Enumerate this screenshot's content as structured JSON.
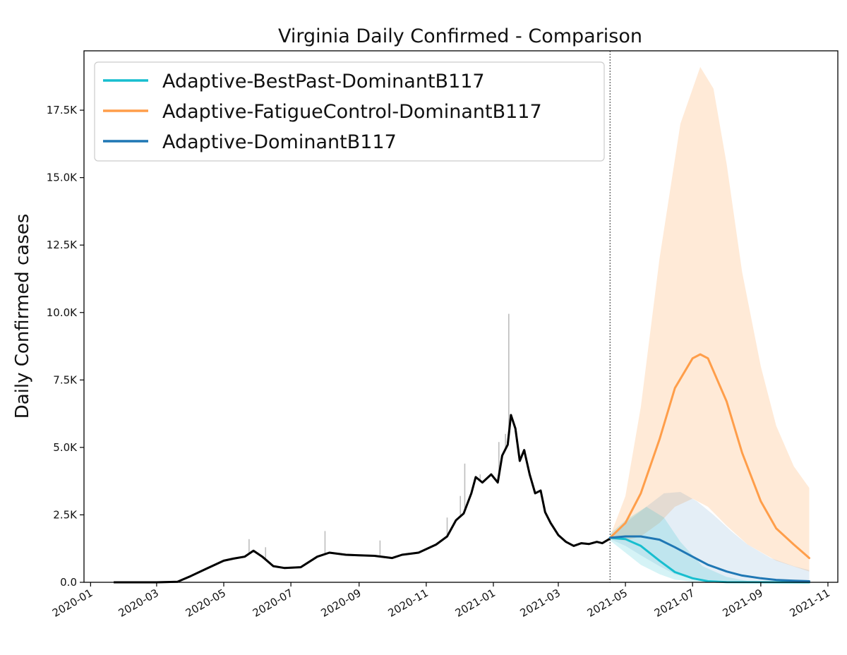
{
  "chart_data": {
    "type": "line",
    "title": "Virginia Daily Confirmed - Comparison",
    "xlabel": "",
    "ylabel": "Daily Confirmed cases",
    "x_ticks": [
      "2020-01",
      "2020-03",
      "2020-05",
      "2020-07",
      "2020-09",
      "2020-11",
      "2021-01",
      "2021-03",
      "2021-05",
      "2021-07",
      "2021-09",
      "2021-11"
    ],
    "y_ticks": [
      {
        "value": 0,
        "label": "0.0"
      },
      {
        "value": 2500,
        "label": "2.5K"
      },
      {
        "value": 5000,
        "label": "5.0K"
      },
      {
        "value": 7500,
        "label": "7.5K"
      },
      {
        "value": 10000,
        "label": "10.0K"
      },
      {
        "value": 12500,
        "label": "12.5K"
      },
      {
        "value": 15000,
        "label": "15.0K"
      },
      {
        "value": 17500,
        "label": "17.5K"
      }
    ],
    "xlim": [
      "2019-12-26",
      "2021-11-10"
    ],
    "ylim": [
      0,
      19700
    ],
    "forecast_start": "2021-04-17",
    "legend_position": "upper-left",
    "observed_smoothed": {
      "color": "#000000",
      "points": [
        [
          "2020-01-22",
          0
        ],
        [
          "2020-03-01",
          0
        ],
        [
          "2020-03-20",
          20
        ],
        [
          "2020-04-01",
          230
        ],
        [
          "2020-04-15",
          500
        ],
        [
          "2020-05-01",
          800
        ],
        [
          "2020-05-10",
          880
        ],
        [
          "2020-05-20",
          950
        ],
        [
          "2020-05-28",
          1170
        ],
        [
          "2020-06-05",
          950
        ],
        [
          "2020-06-15",
          600
        ],
        [
          "2020-06-25",
          530
        ],
        [
          "2020-07-10",
          560
        ],
        [
          "2020-07-25",
          950
        ],
        [
          "2020-08-05",
          1100
        ],
        [
          "2020-08-20",
          1020
        ],
        [
          "2020-09-01",
          1000
        ],
        [
          "2020-09-15",
          980
        ],
        [
          "2020-10-01",
          900
        ],
        [
          "2020-10-10",
          1020
        ],
        [
          "2020-10-25",
          1100
        ],
        [
          "2020-11-10",
          1400
        ],
        [
          "2020-11-20",
          1700
        ],
        [
          "2020-11-28",
          2300
        ],
        [
          "2020-12-05",
          2550
        ],
        [
          "2020-12-12",
          3300
        ],
        [
          "2020-12-16",
          3900
        ],
        [
          "2020-12-22",
          3700
        ],
        [
          "2020-12-30",
          4000
        ],
        [
          "2021-01-05",
          3700
        ],
        [
          "2021-01-09",
          4700
        ],
        [
          "2021-01-14",
          5100
        ],
        [
          "2021-01-17",
          6200
        ],
        [
          "2021-01-21",
          5700
        ],
        [
          "2021-01-25",
          4500
        ],
        [
          "2021-01-29",
          4900
        ],
        [
          "2021-02-03",
          4000
        ],
        [
          "2021-02-08",
          3300
        ],
        [
          "2021-02-13",
          3400
        ],
        [
          "2021-02-17",
          2600
        ],
        [
          "2021-02-22",
          2200
        ],
        [
          "2021-03-01",
          1750
        ],
        [
          "2021-03-08",
          1500
        ],
        [
          "2021-03-15",
          1350
        ],
        [
          "2021-03-22",
          1450
        ],
        [
          "2021-03-29",
          1420
        ],
        [
          "2021-04-05",
          1500
        ],
        [
          "2021-04-10",
          1450
        ],
        [
          "2021-04-17",
          1620
        ]
      ]
    },
    "observed_raw": {
      "color": "#bdbdbd",
      "spikes": [
        [
          "2020-05-24",
          1600
        ],
        [
          "2020-06-08",
          1300
        ],
        [
          "2020-08-01",
          1900
        ],
        [
          "2020-09-20",
          1550
        ],
        [
          "2020-11-20",
          2400
        ],
        [
          "2020-12-02",
          3200
        ],
        [
          "2020-12-06",
          4400
        ],
        [
          "2020-12-20",
          4000
        ],
        [
          "2021-01-06",
          5200
        ],
        [
          "2021-01-12",
          5500
        ],
        [
          "2021-01-15",
          9950
        ],
        [
          "2021-01-22",
          5200
        ],
        [
          "2021-01-30",
          4900
        ]
      ]
    },
    "series": [
      {
        "name": "Adaptive-BestPast-DominantB117",
        "color": "#17becf",
        "points": [
          [
            "2021-04-17",
            1650
          ],
          [
            "2021-05-01",
            1600
          ],
          [
            "2021-05-15",
            1350
          ],
          [
            "2021-06-01",
            800
          ],
          [
            "2021-06-15",
            380
          ],
          [
            "2021-07-01",
            150
          ],
          [
            "2021-07-15",
            40
          ],
          [
            "2021-08-01",
            5
          ],
          [
            "2021-10-15",
            0
          ]
        ],
        "band_upper": [
          [
            "2021-04-17",
            1800
          ],
          [
            "2021-05-01",
            2300
          ],
          [
            "2021-05-20",
            2800
          ],
          [
            "2021-06-05",
            2400
          ],
          [
            "2021-06-20",
            1500
          ],
          [
            "2021-07-10",
            600
          ],
          [
            "2021-08-01",
            200
          ],
          [
            "2021-08-20",
            50
          ],
          [
            "2021-10-15",
            0
          ]
        ],
        "band_lower": [
          [
            "2021-04-17",
            1550
          ],
          [
            "2021-05-01",
            1100
          ],
          [
            "2021-05-15",
            650
          ],
          [
            "2021-06-01",
            300
          ],
          [
            "2021-06-15",
            100
          ],
          [
            "2021-07-01",
            20
          ],
          [
            "2021-10-15",
            0
          ]
        ]
      },
      {
        "name": "Adaptive-FatigueControl-DominantB117",
        "color": "#ff9e4a",
        "points": [
          [
            "2021-04-17",
            1650
          ],
          [
            "2021-05-01",
            2200
          ],
          [
            "2021-05-15",
            3300
          ],
          [
            "2021-06-01",
            5300
          ],
          [
            "2021-06-15",
            7200
          ],
          [
            "2021-07-01",
            8300
          ],
          [
            "2021-07-08",
            8450
          ],
          [
            "2021-07-15",
            8300
          ],
          [
            "2021-08-01",
            6700
          ],
          [
            "2021-08-15",
            4800
          ],
          [
            "2021-09-01",
            3000
          ],
          [
            "2021-09-15",
            2000
          ],
          [
            "2021-10-01",
            1400
          ],
          [
            "2021-10-15",
            900
          ]
        ],
        "band_upper": [
          [
            "2021-04-17",
            1700
          ],
          [
            "2021-05-01",
            3200
          ],
          [
            "2021-05-15",
            6500
          ],
          [
            "2021-06-01",
            12000
          ],
          [
            "2021-06-20",
            17000
          ],
          [
            "2021-07-08",
            19100
          ],
          [
            "2021-07-20",
            18300
          ],
          [
            "2021-08-01",
            15500
          ],
          [
            "2021-08-15",
            11500
          ],
          [
            "2021-09-01",
            8000
          ],
          [
            "2021-09-15",
            5800
          ],
          [
            "2021-10-01",
            4300
          ],
          [
            "2021-10-15",
            3500
          ]
        ],
        "band_lower": [
          [
            "2021-04-17",
            1600
          ],
          [
            "2021-05-01",
            1550
          ],
          [
            "2021-05-15",
            1700
          ],
          [
            "2021-06-01",
            2200
          ],
          [
            "2021-06-15",
            2800
          ],
          [
            "2021-07-01",
            3100
          ],
          [
            "2021-07-15",
            2800
          ],
          [
            "2021-08-01",
            2100
          ],
          [
            "2021-08-20",
            1400
          ],
          [
            "2021-09-15",
            800
          ],
          [
            "2021-10-15",
            400
          ]
        ]
      },
      {
        "name": "Adaptive-DominantB117",
        "color": "#1f77b4",
        "points": [
          [
            "2021-04-17",
            1650
          ],
          [
            "2021-05-01",
            1700
          ],
          [
            "2021-05-15",
            1700
          ],
          [
            "2021-06-01",
            1580
          ],
          [
            "2021-06-15",
            1300
          ],
          [
            "2021-07-01",
            950
          ],
          [
            "2021-07-15",
            650
          ],
          [
            "2021-08-01",
            400
          ],
          [
            "2021-08-15",
            250
          ],
          [
            "2021-09-01",
            150
          ],
          [
            "2021-09-15",
            90
          ],
          [
            "2021-10-01",
            60
          ],
          [
            "2021-10-15",
            40
          ]
        ],
        "band_upper": [
          [
            "2021-04-17",
            1700
          ],
          [
            "2021-05-01",
            2200
          ],
          [
            "2021-05-20",
            2800
          ],
          [
            "2021-06-05",
            3300
          ],
          [
            "2021-06-20",
            3350
          ],
          [
            "2021-07-05",
            3000
          ],
          [
            "2021-07-20",
            2500
          ],
          [
            "2021-08-05",
            1900
          ],
          [
            "2021-08-20",
            1400
          ],
          [
            "2021-09-10",
            900
          ],
          [
            "2021-10-01",
            600
          ],
          [
            "2021-10-15",
            450
          ]
        ],
        "band_lower": [
          [
            "2021-04-17",
            1600
          ],
          [
            "2021-05-01",
            1350
          ],
          [
            "2021-05-15",
            1000
          ],
          [
            "2021-06-01",
            600
          ],
          [
            "2021-06-15",
            300
          ],
          [
            "2021-07-01",
            120
          ],
          [
            "2021-07-15",
            40
          ],
          [
            "2021-08-01",
            10
          ],
          [
            "2021-10-15",
            0
          ]
        ]
      }
    ]
  }
}
